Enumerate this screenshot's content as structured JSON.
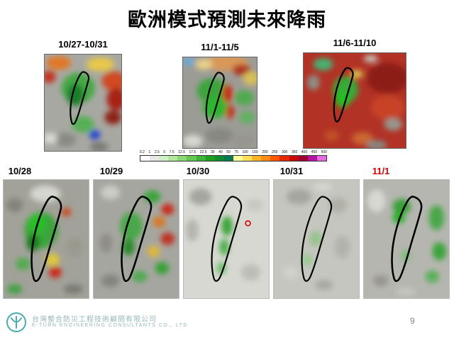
{
  "title": "歐洲模式預測未來降雨",
  "top_panels": [
    {
      "label": "10/27-10/31"
    },
    {
      "label": "11/1-11/5"
    },
    {
      "label": "11/6-11/10"
    }
  ],
  "colorbar": {
    "ticks": [
      "0.2",
      "1",
      "2.5",
      "5",
      "7.5",
      "12.5",
      "17.5",
      "22.5",
      "30",
      "40",
      "50",
      "75",
      "100",
      "150",
      "200",
      "250",
      "300",
      "350",
      "400",
      "450",
      "500"
    ],
    "colors": [
      "#ffffff",
      "#e8e8e8",
      "#d2f0c8",
      "#b4e6a0",
      "#8cd878",
      "#64c850",
      "#3cb43c",
      "#1ea01e",
      "#0f8c32",
      "#0a7850",
      "#ffff9b",
      "#ffe05a",
      "#ffb428",
      "#ff8c14",
      "#ff5a00",
      "#e62800",
      "#c80a0a",
      "#a00032",
      "#b414a0",
      "#e06ee0"
    ]
  },
  "bottom_panels": [
    {
      "label": "10/28",
      "label_color": "#000000"
    },
    {
      "label": "10/29",
      "label_color": "#000000"
    },
    {
      "label": "10/30",
      "label_color": "#000000"
    },
    {
      "label": "10/31",
      "label_color": "#000000"
    },
    {
      "label": "11/1",
      "label_color": "#d40000"
    }
  ],
  "footer": {
    "company_zh": "台灣整合防災工程技術顧問有限公司",
    "company_en": "E-TURN ENGINEERING CONSULTANTS CO., LTD",
    "accent": "#96b6b8",
    "page": "9"
  }
}
